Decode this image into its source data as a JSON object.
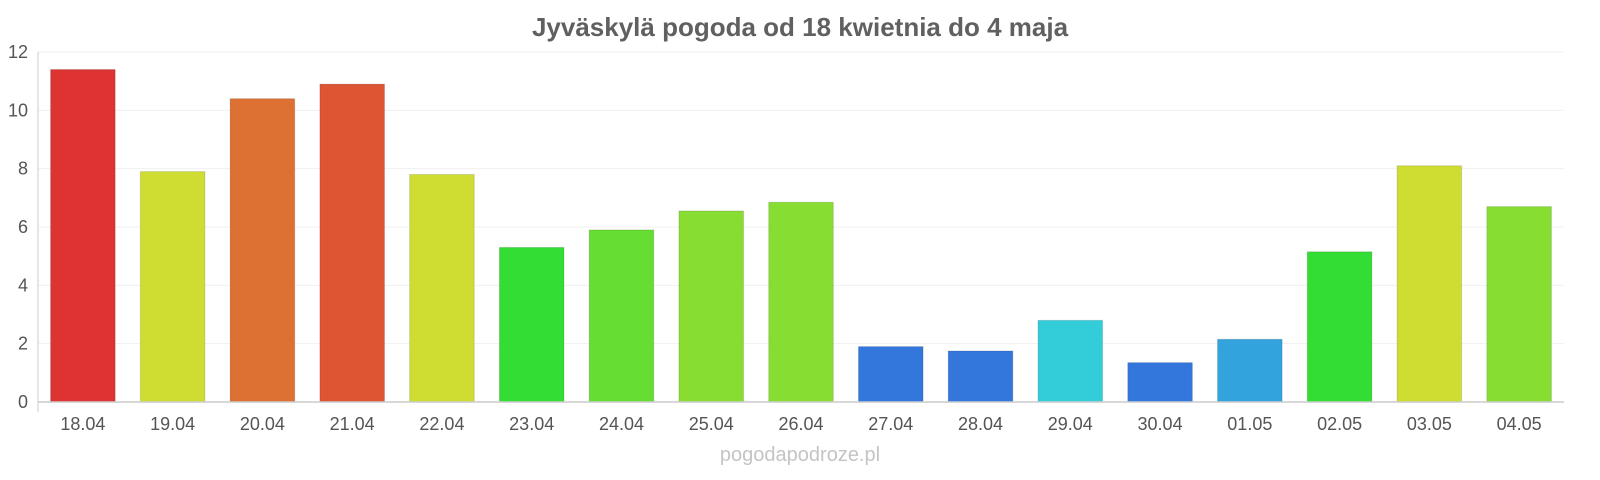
{
  "chart_data": {
    "type": "bar",
    "title": "Jyväskylä pogoda od 18 kwietnia do 4 maja",
    "xlabel": "",
    "ylabel": "",
    "ylim": [
      0,
      12
    ],
    "yticks": [
      "0",
      "2",
      "4",
      "6",
      "8",
      "10",
      "12"
    ],
    "grid": true,
    "categories": [
      "18.04",
      "19.04",
      "20.04",
      "21.04",
      "22.04",
      "23.04",
      "24.04",
      "25.04",
      "26.04",
      "27.04",
      "28.04",
      "29.04",
      "30.04",
      "01.05",
      "02.05",
      "03.05",
      "04.05"
    ],
    "values": [
      11.4,
      7.9,
      10.4,
      10.9,
      7.8,
      5.3,
      5.9,
      6.55,
      6.85,
      1.9,
      1.75,
      2.8,
      1.35,
      2.15,
      5.15,
      8.1,
      6.7
    ],
    "colors": [
      "#dd3333",
      "#cfdd33",
      "#dd7033",
      "#dd5533",
      "#cfdd33",
      "#33dd33",
      "#66dd33",
      "#88dd33",
      "#88dd33",
      "#3377dd",
      "#3377dd",
      "#33cdd9",
      "#3377dd",
      "#33a3dd",
      "#33dd33",
      "#cfdd33",
      "#88dd33"
    ]
  },
  "watermark": "pogodapodroze.pl"
}
